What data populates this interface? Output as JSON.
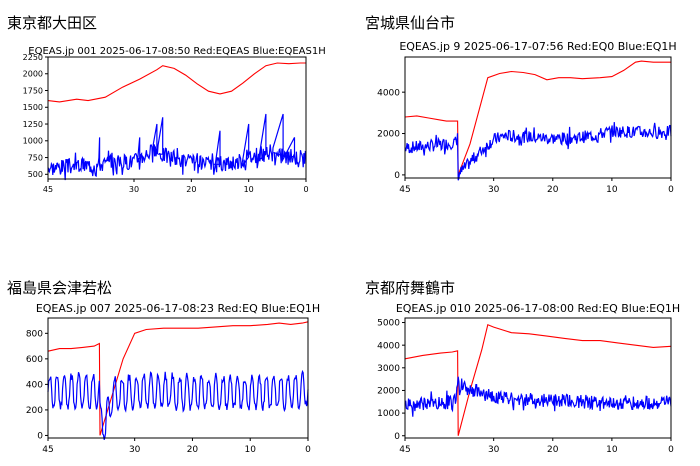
{
  "panels": [
    {
      "region": "東京都大田区"
    },
    {
      "region": "宮城県仙台市"
    },
    {
      "region": "福島県会津若松"
    },
    {
      "region": "京都府舞鶴市"
    }
  ],
  "chart_data": [
    {
      "type": "line",
      "title": "EQEAS.jp 001 2025-06-17-08:50 Red:EQEAS Blue:EQEAS1H",
      "xlim": [
        45,
        0
      ],
      "ylim": [
        430,
        2250
      ],
      "xticks": [
        45,
        30,
        20,
        10,
        0
      ],
      "yticks": [
        500,
        750,
        1000,
        1250,
        1500,
        1750,
        2000,
        2250
      ],
      "series": [
        {
          "name": "Red",
          "color": "#ff0000",
          "x": [
            45,
            43,
            40,
            38,
            35,
            32,
            29,
            26,
            25,
            23,
            21,
            19,
            17,
            15,
            13,
            11,
            9,
            7,
            5,
            3,
            1,
            0
          ],
          "y": [
            1600,
            1580,
            1620,
            1600,
            1650,
            1800,
            1920,
            2060,
            2120,
            2080,
            1980,
            1850,
            1740,
            1700,
            1740,
            1860,
            2000,
            2120,
            2160,
            2150,
            2160,
            2160
          ]
        },
        {
          "name": "Blue",
          "color": "#0000ff",
          "noisy": true,
          "amp": 120,
          "seed": 3,
          "x": [
            45,
            40,
            35,
            30,
            27,
            25,
            22,
            20,
            17,
            15,
            12,
            10,
            7,
            5,
            2,
            0
          ],
          "y": [
            600,
            630,
            660,
            700,
            850,
            800,
            720,
            680,
            640,
            650,
            680,
            760,
            800,
            780,
            760,
            770
          ],
          "spikes": [
            [
              36,
              1050
            ],
            [
              29,
              1050
            ],
            [
              26,
              1250
            ],
            [
              25,
              1350
            ],
            [
              15,
              1150
            ],
            [
              10,
              1250
            ],
            [
              7,
              1400
            ],
            [
              4,
              1400
            ],
            [
              2,
              1050
            ]
          ]
        }
      ]
    },
    {
      "type": "line",
      "title": "EQEAS.jp 9 2025-06-17-07:56 Red:EQ0 Blue:EQ1H",
      "xlim": [
        45,
        0
      ],
      "ylim": [
        -150,
        5700
      ],
      "xticks": [
        45,
        30,
        20,
        10,
        0
      ],
      "yticks": [
        0,
        2000,
        4000
      ],
      "series": [
        {
          "name": "Red",
          "color": "#ff0000",
          "x": [
            45,
            43,
            41,
            39,
            38,
            37,
            36.1,
            36,
            34,
            31,
            29,
            27,
            25,
            23,
            21,
            19,
            17,
            15,
            12,
            10,
            8,
            6,
            5,
            3,
            0
          ],
          "y": [
            2800,
            2850,
            2750,
            2650,
            2600,
            2600,
            2600,
            0,
            1500,
            4700,
            4900,
            5000,
            4950,
            4850,
            4600,
            4700,
            4700,
            4650,
            4700,
            4750,
            5050,
            5450,
            5500,
            5450,
            5450
          ]
        },
        {
          "name": "Blue",
          "color": "#0000ff",
          "noisy": true,
          "amp": 300,
          "seed": 7,
          "x": [
            45,
            41,
            38,
            36.1,
            36,
            34,
            32,
            30,
            28,
            25,
            22,
            19,
            16,
            13,
            11,
            10,
            8,
            5,
            2,
            0
          ],
          "y": [
            1300,
            1400,
            1500,
            1600,
            0,
            600,
            1200,
            1700,
            1900,
            1850,
            1800,
            1750,
            1800,
            1900,
            2050,
            2100,
            2100,
            2050,
            2050,
            2100
          ]
        }
      ]
    },
    {
      "type": "line",
      "title": "EQEAS.jp 007 2025-06-17-08:23 Red:EQ Blue:EQ1H",
      "xlim": [
        45,
        0
      ],
      "ylim": [
        -20,
        920
      ],
      "xticks": [
        45,
        30,
        20,
        10,
        0
      ],
      "yticks": [
        0,
        200,
        400,
        600,
        800
      ],
      "series": [
        {
          "name": "Red",
          "color": "#ff0000",
          "x": [
            45,
            43,
            41,
            39,
            37,
            36.1,
            36,
            34,
            32,
            30,
            28,
            25,
            22,
            19,
            16,
            13,
            10,
            7,
            5,
            3,
            1,
            0
          ],
          "y": [
            660,
            680,
            680,
            690,
            700,
            720,
            0,
            300,
            600,
            800,
            830,
            840,
            840,
            840,
            850,
            860,
            860,
            870,
            880,
            870,
            880,
            890
          ]
        },
        {
          "name": "Blue",
          "color": "#0000ff",
          "oscillate": true,
          "amp": 150,
          "period": 1.25,
          "seed": 11,
          "x": [
            45,
            40,
            37,
            36.1,
            36,
            35,
            34,
            32,
            30,
            25,
            20,
            15,
            10,
            5,
            2,
            0
          ],
          "y": [
            340,
            340,
            340,
            340,
            100,
            80,
            300,
            330,
            340,
            340,
            330,
            330,
            330,
            340,
            340,
            360
          ]
        }
      ]
    },
    {
      "type": "line",
      "title": "EQEAS.jp 010 2025-06-17-08:00 Red:EQ Blue:EQ1H",
      "xlim": [
        45,
        0
      ],
      "ylim": [
        -100,
        5200
      ],
      "xticks": [
        45,
        30,
        20,
        10,
        0
      ],
      "yticks": [
        0,
        1000,
        2000,
        3000,
        4000,
        5000
      ],
      "series": [
        {
          "name": "Red",
          "color": "#ff0000",
          "x": [
            45,
            42,
            39,
            37,
            36.1,
            36,
            34,
            32,
            31,
            30,
            27,
            24,
            21,
            18,
            15,
            12,
            9,
            6,
            3,
            0
          ],
          "y": [
            3400,
            3550,
            3650,
            3700,
            3750,
            0,
            2000,
            3800,
            4900,
            4800,
            4550,
            4500,
            4400,
            4300,
            4200,
            4200,
            4100,
            4000,
            3900,
            3950
          ]
        },
        {
          "name": "Blue",
          "color": "#0000ff",
          "noisy": true,
          "amp": 300,
          "seed": 19,
          "x": [
            45,
            42,
            39,
            37,
            36,
            35,
            33,
            31,
            29,
            27,
            24,
            21,
            18,
            15,
            12,
            9,
            6,
            3,
            0
          ],
          "y": [
            1350,
            1400,
            1450,
            1450,
            2100,
            2050,
            1900,
            1800,
            1700,
            1600,
            1600,
            1550,
            1550,
            1500,
            1500,
            1450,
            1450,
            1450,
            1500
          ]
        }
      ]
    }
  ]
}
